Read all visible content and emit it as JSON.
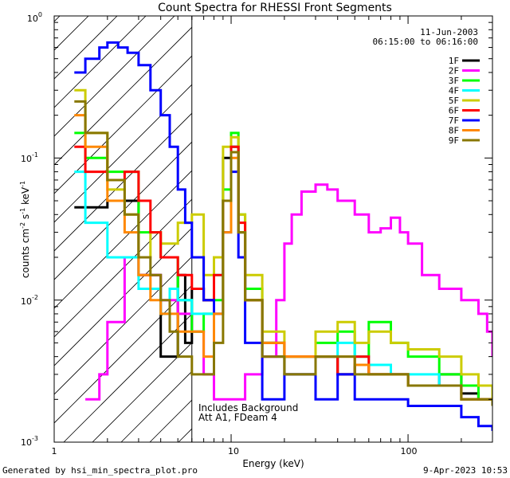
{
  "chart_data": {
    "type": "line",
    "title": "Count Spectra for RHESSI Front Segments",
    "xlabel": "Energy (keV)",
    "ylabel_parts": {
      "base": "counts cm",
      "sup1": "-2",
      "mid": " s",
      "sup2": "-1",
      "end": " keV",
      "sup3": "-1"
    },
    "xscale": "log",
    "yscale": "log",
    "xlim": [
      1,
      300
    ],
    "ylim": [
      0.001,
      1
    ],
    "xticks": [
      {
        "value": 1,
        "label": "1"
      },
      {
        "value": 10,
        "label": "10"
      },
      {
        "value": 100,
        "label": "100"
      }
    ],
    "yticks": [
      {
        "value": 1,
        "base": "10",
        "exp": "0"
      },
      {
        "value": 0.1,
        "base": "10",
        "exp": "-1"
      },
      {
        "value": 0.01,
        "base": "10",
        "exp": "-2"
      },
      {
        "value": 0.001,
        "base": "10",
        "exp": "-3"
      }
    ],
    "hatched_region": {
      "x_start": 1,
      "x_end": 6
    },
    "annotation_date": "11-Jun-2003",
    "annotation_time": "06:15:00 to 06:16:00",
    "annotation_bg_1": "Includes Background",
    "annotation_bg_2": "Att A1, FDeam 4",
    "legend_position": "top-right",
    "series": [
      {
        "name": "1F",
        "color": "#000000",
        "x": [
          1.3,
          1.5,
          2,
          3,
          4,
          4.5,
          5,
          5.5,
          6,
          7,
          8,
          9,
          10,
          11,
          12,
          15,
          20,
          30,
          40,
          50,
          60,
          80,
          100,
          150,
          200,
          250,
          300
        ],
        "y": [
          0.045,
          0.045,
          0.05,
          0.015,
          0.004,
          0.004,
          0.015,
          0.005,
          0.012,
          0.01,
          0.02,
          0.1,
          0.12,
          0.03,
          0.01,
          0.004,
          0.003,
          0.004,
          0.003,
          0.0035,
          0.003,
          0.003,
          0.0025,
          0.003,
          0.0022,
          0.002,
          0.0018
        ]
      },
      {
        "name": "2F",
        "color": "#ff00ff",
        "x": [
          1.5,
          1.8,
          2,
          2.5,
          3,
          4,
          5,
          6,
          7,
          8,
          9,
          10,
          11,
          12,
          15,
          18,
          20,
          22,
          25,
          30,
          35,
          40,
          50,
          60,
          70,
          80,
          90,
          100,
          120,
          150,
          200,
          250,
          280,
          300
        ],
        "y": [
          0.002,
          0.003,
          0.007,
          0.02,
          0.015,
          0.01,
          0.008,
          0.006,
          0.003,
          0.002,
          0.002,
          0.002,
          0.002,
          0.003,
          0.004,
          0.01,
          0.025,
          0.04,
          0.058,
          0.065,
          0.06,
          0.05,
          0.04,
          0.03,
          0.032,
          0.038,
          0.03,
          0.025,
          0.015,
          0.012,
          0.01,
          0.008,
          0.006,
          0.004
        ]
      },
      {
        "name": "3F",
        "color": "#00ff00",
        "x": [
          1.3,
          1.5,
          2,
          3,
          4,
          5,
          6,
          7,
          8,
          9,
          10,
          11,
          12,
          15,
          20,
          30,
          40,
          50,
          60,
          80,
          100,
          150,
          200,
          250,
          300
        ],
        "y": [
          0.15,
          0.1,
          0.08,
          0.03,
          0.02,
          0.01,
          0.006,
          0.008,
          0.01,
          0.06,
          0.15,
          0.04,
          0.012,
          0.005,
          0.004,
          0.005,
          0.006,
          0.004,
          0.007,
          0.005,
          0.004,
          0.003,
          0.0025,
          0.002,
          0.002
        ]
      },
      {
        "name": "4F",
        "color": "#00ffff",
        "x": [
          1.3,
          1.5,
          2,
          3,
          4,
          4.5,
          5,
          6,
          7,
          8,
          9,
          10,
          11,
          12,
          15,
          20,
          30,
          40,
          50,
          60,
          80,
          100,
          150,
          200,
          250,
          300
        ],
        "y": [
          0.08,
          0.035,
          0.02,
          0.012,
          0.008,
          0.012,
          0.01,
          0.008,
          0.008,
          0.015,
          0.05,
          0.12,
          0.03,
          0.01,
          0.005,
          0.004,
          0.004,
          0.005,
          0.004,
          0.0035,
          0.003,
          0.003,
          0.0025,
          0.002,
          0.002,
          0.0018
        ]
      },
      {
        "name": "5F",
        "color": "#cccc00",
        "x": [
          1.3,
          1.5,
          2,
          2.5,
          3,
          3.5,
          4,
          5,
          6,
          7,
          8,
          9,
          10,
          11,
          12,
          15,
          20,
          30,
          40,
          50,
          60,
          80,
          100,
          150,
          200,
          250,
          300
        ],
        "y": [
          0.3,
          0.15,
          0.06,
          0.04,
          0.02,
          0.03,
          0.025,
          0.035,
          0.04,
          0.015,
          0.02,
          0.12,
          0.14,
          0.04,
          0.015,
          0.006,
          0.004,
          0.006,
          0.007,
          0.005,
          0.006,
          0.005,
          0.0045,
          0.004,
          0.003,
          0.0025,
          0.002
        ]
      },
      {
        "name": "6F",
        "color": "#ff0000",
        "x": [
          1.3,
          1.5,
          2,
          2.5,
          3,
          3.5,
          4,
          5,
          6,
          7,
          8,
          9,
          10,
          11,
          12,
          15,
          20,
          30,
          40,
          50,
          60,
          80,
          100,
          150,
          200,
          250,
          300
        ],
        "y": [
          0.12,
          0.08,
          0.07,
          0.08,
          0.05,
          0.03,
          0.02,
          0.015,
          0.012,
          0.01,
          0.015,
          0.05,
          0.12,
          0.035,
          0.01,
          0.005,
          0.004,
          0.004,
          0.003,
          0.004,
          0.003,
          0.003,
          0.0025,
          0.0025,
          0.002,
          0.002,
          0.0018
        ]
      },
      {
        "name": "7F",
        "color": "#0000ff",
        "x": [
          1.3,
          1.5,
          1.8,
          2,
          2.3,
          2.6,
          3,
          3.5,
          4,
          4.5,
          5,
          5.5,
          6,
          7,
          8,
          9,
          10,
          11,
          12,
          15,
          20,
          30,
          40,
          50,
          60,
          80,
          100,
          150,
          200,
          250,
          300
        ],
        "y": [
          0.4,
          0.5,
          0.6,
          0.65,
          0.6,
          0.55,
          0.45,
          0.3,
          0.2,
          0.12,
          0.06,
          0.035,
          0.02,
          0.01,
          0.008,
          0.03,
          0.08,
          0.02,
          0.005,
          0.002,
          0.003,
          0.002,
          0.003,
          0.002,
          0.002,
          0.002,
          0.0018,
          0.0018,
          0.0015,
          0.0013,
          0.0012
        ]
      },
      {
        "name": "8F",
        "color": "#ff8800",
        "x": [
          1.3,
          1.5,
          2,
          2.5,
          3,
          3.5,
          4,
          5,
          6,
          7,
          8,
          9,
          10,
          11,
          12,
          15,
          20,
          30,
          40,
          50,
          60,
          80,
          100,
          150,
          200,
          250,
          300
        ],
        "y": [
          0.2,
          0.12,
          0.05,
          0.03,
          0.015,
          0.01,
          0.008,
          0.006,
          0.006,
          0.004,
          0.008,
          0.03,
          0.1,
          0.03,
          0.01,
          0.005,
          0.004,
          0.004,
          0.004,
          0.0035,
          0.003,
          0.003,
          0.0025,
          0.0025,
          0.002,
          0.002,
          0.0018
        ]
      },
      {
        "name": "9F",
        "color": "#887700",
        "x": [
          1.3,
          1.5,
          2,
          2.5,
          3,
          3.5,
          4,
          4.5,
          5,
          6,
          7,
          8,
          9,
          10,
          11,
          12,
          15,
          20,
          30,
          40,
          50,
          60,
          80,
          100,
          150,
          200,
          250,
          300
        ],
        "y": [
          0.25,
          0.15,
          0.07,
          0.04,
          0.02,
          0.015,
          0.01,
          0.006,
          0.004,
          0.003,
          0.003,
          0.005,
          0.05,
          0.11,
          0.03,
          0.01,
          0.004,
          0.003,
          0.004,
          0.004,
          0.003,
          0.003,
          0.003,
          0.0025,
          0.0025,
          0.002,
          0.002,
          0.0018
        ]
      }
    ]
  },
  "footer": {
    "generated_by": "Generated by hsi_min_spectra_plot.pro",
    "timestamp": "9-Apr-2023 10:53"
  }
}
